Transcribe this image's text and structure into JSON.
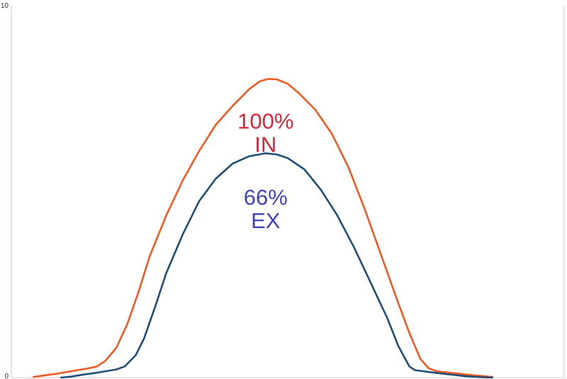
{
  "chart_data": {
    "type": "line",
    "title": "",
    "xlabel": "",
    "ylabel": "",
    "ylim": [
      0,
      10
    ],
    "xlim": [
      0,
      100
    ],
    "grid": false,
    "y_ticks": [
      "0",
      "10"
    ],
    "series": [
      {
        "color": "#ee5a24",
        "points": [
          [
            4,
            0.02
          ],
          [
            6,
            0.06
          ],
          [
            8,
            0.1
          ],
          [
            10,
            0.15
          ],
          [
            12,
            0.2
          ],
          [
            14,
            0.25
          ],
          [
            15.5,
            0.3
          ],
          [
            17,
            0.45
          ],
          [
            19,
            0.8
          ],
          [
            21,
            1.45
          ],
          [
            23,
            2.3
          ],
          [
            25,
            3.25
          ],
          [
            28,
            4.35
          ],
          [
            31,
            5.3
          ],
          [
            34,
            6.1
          ],
          [
            37,
            6.8
          ],
          [
            40,
            7.3
          ],
          [
            43,
            7.75
          ],
          [
            45,
            7.97
          ],
          [
            46.5,
            8.03
          ],
          [
            48,
            8.02
          ],
          [
            50,
            7.9
          ],
          [
            52,
            7.65
          ],
          [
            55,
            7.2
          ],
          [
            58,
            6.55
          ],
          [
            61,
            5.65
          ],
          [
            64,
            4.5
          ],
          [
            67,
            3.25
          ],
          [
            70,
            2.0
          ],
          [
            72,
            1.2
          ],
          [
            74,
            0.5
          ],
          [
            75.5,
            0.25
          ],
          [
            77,
            0.17
          ],
          [
            80,
            0.12
          ],
          [
            83,
            0.07
          ],
          [
            86,
            0.03
          ],
          [
            87,
            0.02
          ]
        ]
      },
      {
        "color": "#1f4e79",
        "points": [
          [
            9,
            0.0
          ],
          [
            11,
            0.03
          ],
          [
            13,
            0.08
          ],
          [
            15,
            0.12
          ],
          [
            17,
            0.17
          ],
          [
            19,
            0.22
          ],
          [
            20.5,
            0.3
          ],
          [
            22.5,
            0.6
          ],
          [
            24,
            1.05
          ],
          [
            26,
            1.9
          ],
          [
            28,
            2.8
          ],
          [
            31,
            3.85
          ],
          [
            34,
            4.75
          ],
          [
            37,
            5.35
          ],
          [
            40,
            5.75
          ],
          [
            43,
            5.95
          ],
          [
            46,
            6.03
          ],
          [
            48,
            6.0
          ],
          [
            50,
            5.9
          ],
          [
            53,
            5.6
          ],
          [
            56,
            5.05
          ],
          [
            59,
            4.35
          ],
          [
            62,
            3.5
          ],
          [
            65,
            2.55
          ],
          [
            68,
            1.6
          ],
          [
            70,
            0.85
          ],
          [
            72,
            0.3
          ],
          [
            73,
            0.2
          ],
          [
            76,
            0.14
          ],
          [
            79,
            0.09
          ],
          [
            82,
            0.04
          ],
          [
            85,
            0.01
          ],
          [
            87,
            0.0
          ]
        ]
      }
    ],
    "annotations": [
      {
        "lines": [
          "100%",
          "IN"
        ],
        "color": "#d9273a",
        "x": 46,
        "y": 6.7
      },
      {
        "lines": [
          "66%",
          "EX"
        ],
        "color": "#4343b8",
        "x": 46,
        "y": 4.65
      }
    ]
  }
}
